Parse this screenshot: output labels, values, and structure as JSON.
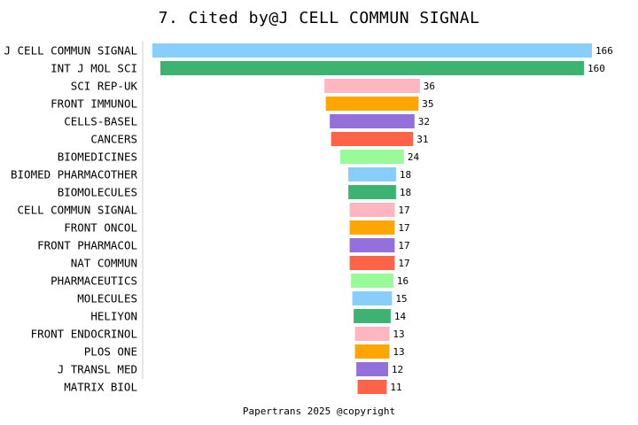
{
  "chart_data": {
    "type": "bar",
    "orientation": "horizontal-funnel",
    "title": "7. Cited by@J CELL COMMUN SIGNAL",
    "categories": [
      "J CELL COMMUN SIGNAL",
      "INT J MOL SCI",
      "SCI REP-UK",
      "FRONT IMMUNOL",
      "CELLS-BASEL",
      "CANCERS",
      "BIOMEDICINES",
      "BIOMED PHARMACOTHER",
      "BIOMOLECULES",
      "CELL COMMUN SIGNAL",
      "FRONT ONCOL",
      "FRONT PHARMACOL",
      "NAT COMMUN",
      "PHARMACEUTICS",
      "MOLECULES",
      "HELIYON",
      "FRONT ENDOCRINOL",
      "PLOS ONE",
      "J TRANSL MED",
      "MATRIX BIOL"
    ],
    "values": [
      166,
      160,
      36,
      35,
      32,
      31,
      24,
      18,
      18,
      17,
      17,
      17,
      17,
      16,
      15,
      14,
      13,
      13,
      12,
      11
    ],
    "colors": [
      "#87CEFA",
      "#3CB371",
      "#FFB6C1",
      "#FFA500",
      "#9370DB",
      "#FF6347",
      "#98FB98"
    ],
    "xlabel": "",
    "ylabel": "",
    "grid": false,
    "legend": "none"
  },
  "footer": "Papertrans 2025 @copyright"
}
